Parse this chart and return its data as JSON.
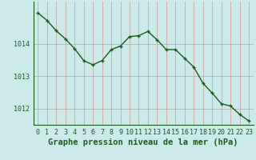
{
  "x": [
    0,
    1,
    2,
    3,
    4,
    5,
    6,
    7,
    8,
    9,
    10,
    11,
    12,
    13,
    14,
    15,
    16,
    17,
    18,
    19,
    20,
    21,
    22,
    23
  ],
  "y": [
    1014.95,
    1014.72,
    1014.4,
    1014.15,
    1013.85,
    1013.48,
    1013.35,
    1013.48,
    1013.82,
    1013.93,
    1014.22,
    1014.25,
    1014.38,
    1014.12,
    1013.82,
    1013.82,
    1013.55,
    1013.28,
    1012.78,
    1012.48,
    1012.15,
    1012.08,
    1011.82,
    1011.62
  ],
  "line_color": "#1a5c1a",
  "marker": "+",
  "bg_color": "#cceaea",
  "vgrid_color": "#cc9999",
  "hgrid_color": "#aaaaaa",
  "axis_label_color": "#1a5c1a",
  "xlabel": "Graphe pression niveau de la mer (hPa)",
  "xlim": [
    -0.5,
    23.5
  ],
  "ylim": [
    1011.5,
    1015.3
  ],
  "yticks": [
    1012,
    1013,
    1014
  ],
  "xticks": [
    0,
    1,
    2,
    3,
    4,
    5,
    6,
    7,
    8,
    9,
    10,
    11,
    12,
    13,
    14,
    15,
    16,
    17,
    18,
    19,
    20,
    21,
    22,
    23
  ],
  "linewidth": 1.0,
  "markersize": 3.5,
  "markerwidth": 1.0,
  "xlabel_fontsize": 7.5,
  "tick_fontsize": 6.0
}
